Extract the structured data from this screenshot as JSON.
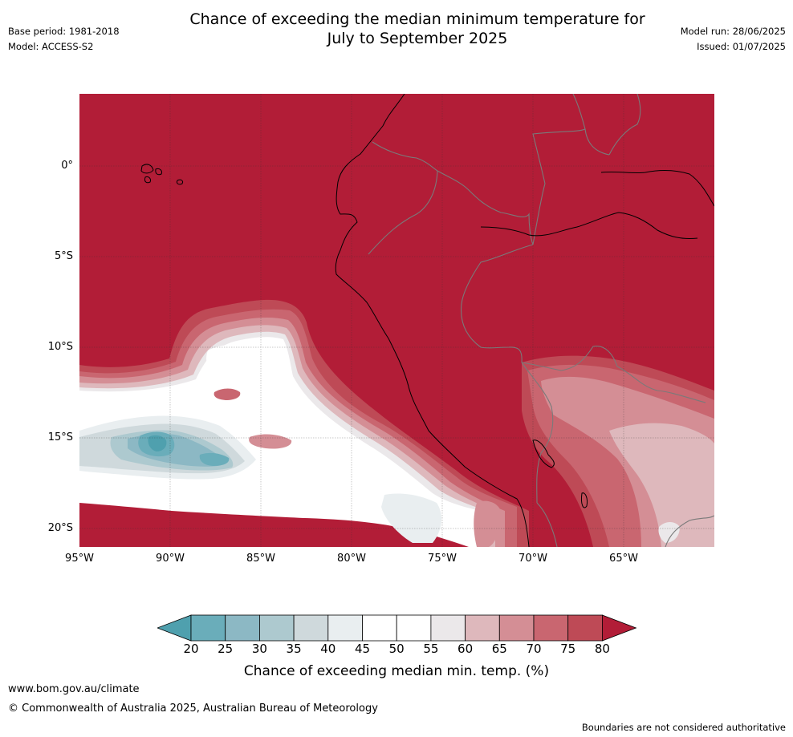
{
  "header": {
    "title_line1": "Chance of exceeding the median minimum temperature for",
    "title_line2": "July to September 2025",
    "base_period": "Base period: 1981-2018",
    "model": "Model: ACCESS-S2",
    "model_run": "Model run: 28/06/2025",
    "issued": "Issued: 01/07/2025"
  },
  "map": {
    "lat_labels": [
      "0°",
      "5°S",
      "10°S",
      "15°S",
      "20°S"
    ],
    "lon_labels": [
      "95°W",
      "90°W",
      "85°W",
      "80°W",
      "75°W",
      "70°W",
      "65°W"
    ],
    "background_color": "#b21d37"
  },
  "colorbar": {
    "ticks": [
      "20",
      "25",
      "30",
      "35",
      "40",
      "45",
      "50",
      "55",
      "60",
      "65",
      "70",
      "75",
      "80"
    ],
    "colors": [
      "#4fa0ae",
      "#6aadba",
      "#8cb8c4",
      "#adc9cf",
      "#cfd9dc",
      "#e9eef0",
      "#ffffff",
      "#ffffff",
      "#ebe8ea",
      "#deb8bc",
      "#d48e95",
      "#c96670",
      "#be4a56",
      "#b21d37"
    ],
    "title": "Chance of exceeding median min. temp. (%)"
  },
  "footer": {
    "url": "www.bom.gov.au/climate",
    "copyright": "© Commonwealth of Australia 2025, Australian Bureau of Meteorology",
    "disclaimer": "Boundaries are not considered authoritative"
  }
}
